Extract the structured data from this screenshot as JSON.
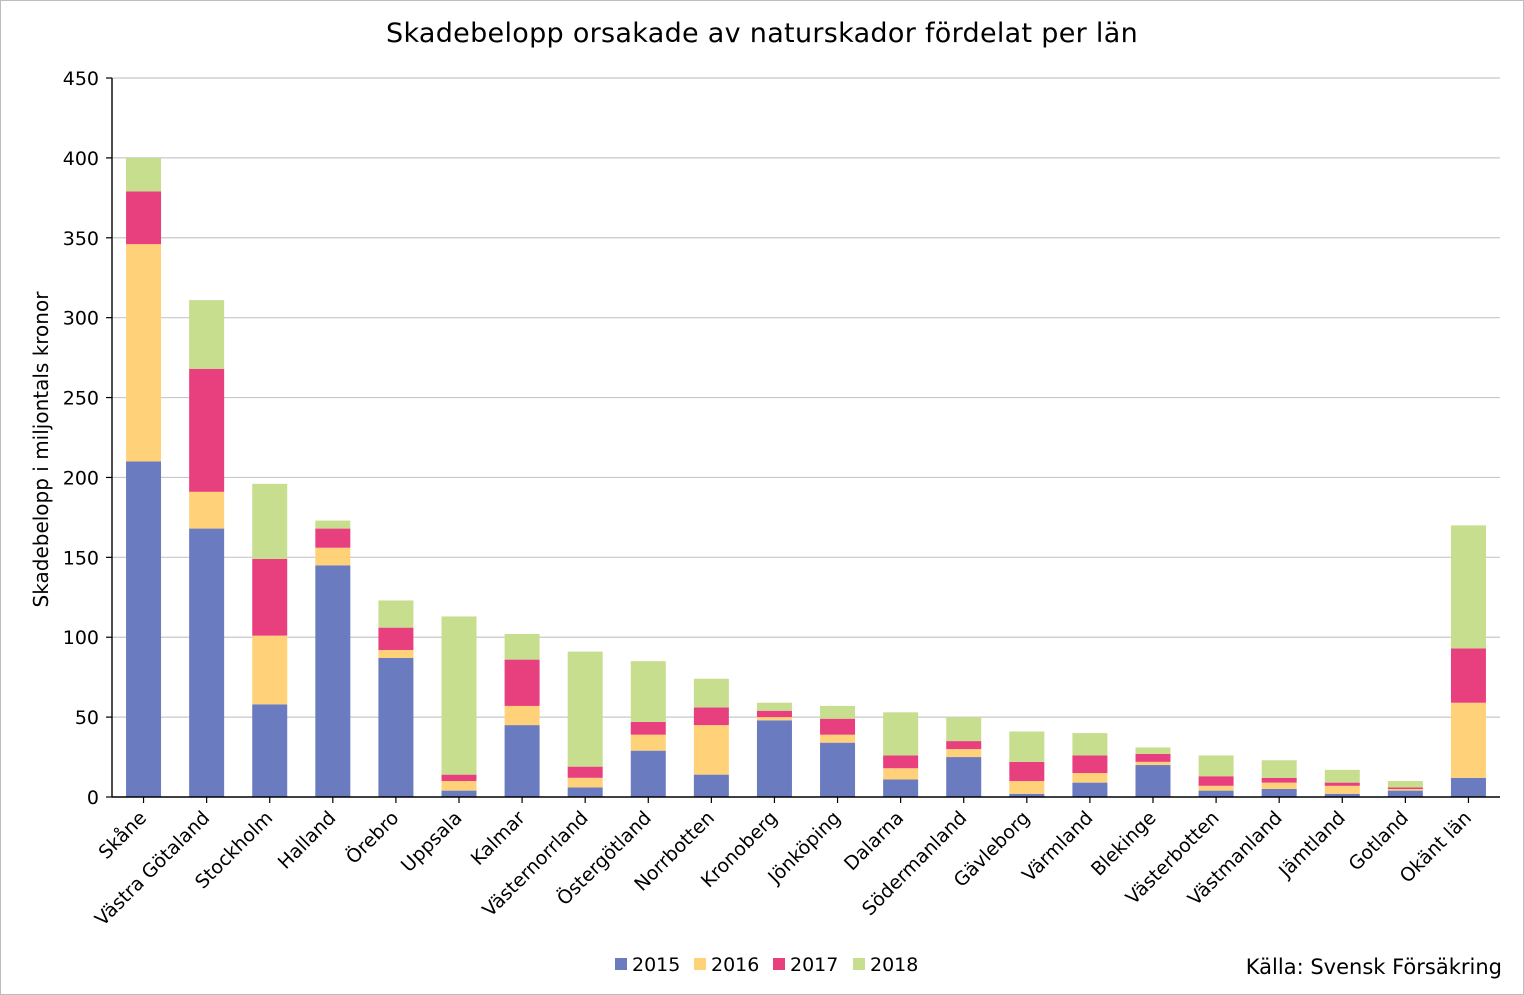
{
  "chart_data": {
    "type": "bar",
    "stacked": true,
    "title": "Skadebelopp orsakade av naturskador fördelat per län",
    "ylabel": "Skadebelopp i miljontals kronor",
    "xlabel": "",
    "ylim": [
      0,
      450
    ],
    "yticks": [
      0,
      50,
      100,
      150,
      200,
      250,
      300,
      350,
      400,
      450
    ],
    "grid": true,
    "legend_position": "bottom",
    "categories": [
      "Skåne",
      "Västra Götaland",
      "Stockholm",
      "Halland",
      "Örebro",
      "Uppsala",
      "Kalmar",
      "Västernorrland",
      "Östergötland",
      "Norrbotten",
      "Kronoberg",
      "Jönköping",
      "Dalarna",
      "Södermanland",
      "Gävleborg",
      "Värmland",
      "Blekinge",
      "Västerbotten",
      "Västmanland",
      "Jämtland",
      "Gotland",
      "Okänt län"
    ],
    "series": [
      {
        "name": "2015",
        "color": "#6a7bbf",
        "values": [
          210,
          168,
          58,
          145,
          87,
          4,
          45,
          6,
          29,
          14,
          48,
          34,
          11,
          25,
          2,
          9,
          20,
          4,
          5,
          2,
          4,
          12
        ]
      },
      {
        "name": "2016",
        "color": "#ffd27a",
        "values": [
          136,
          23,
          43,
          11,
          5,
          6,
          12,
          6,
          10,
          31,
          2,
          5,
          7,
          5,
          8,
          6,
          2,
          3,
          4,
          5,
          1,
          47
        ]
      },
      {
        "name": "2017",
        "color": "#e8407f",
        "values": [
          33,
          77,
          48,
          12,
          14,
          4,
          29,
          7,
          8,
          11,
          4,
          10,
          8,
          5,
          12,
          11,
          5,
          6,
          3,
          2,
          1,
          34
        ]
      },
      {
        "name": "2018",
        "color": "#c6de8d",
        "values": [
          21,
          43,
          47,
          5,
          17,
          99,
          16,
          72,
          38,
          18,
          5,
          8,
          27,
          15,
          19,
          14,
          4,
          13,
          11,
          8,
          4,
          77
        ]
      }
    ]
  },
  "source_note": "Källa: Svensk Försäkring"
}
